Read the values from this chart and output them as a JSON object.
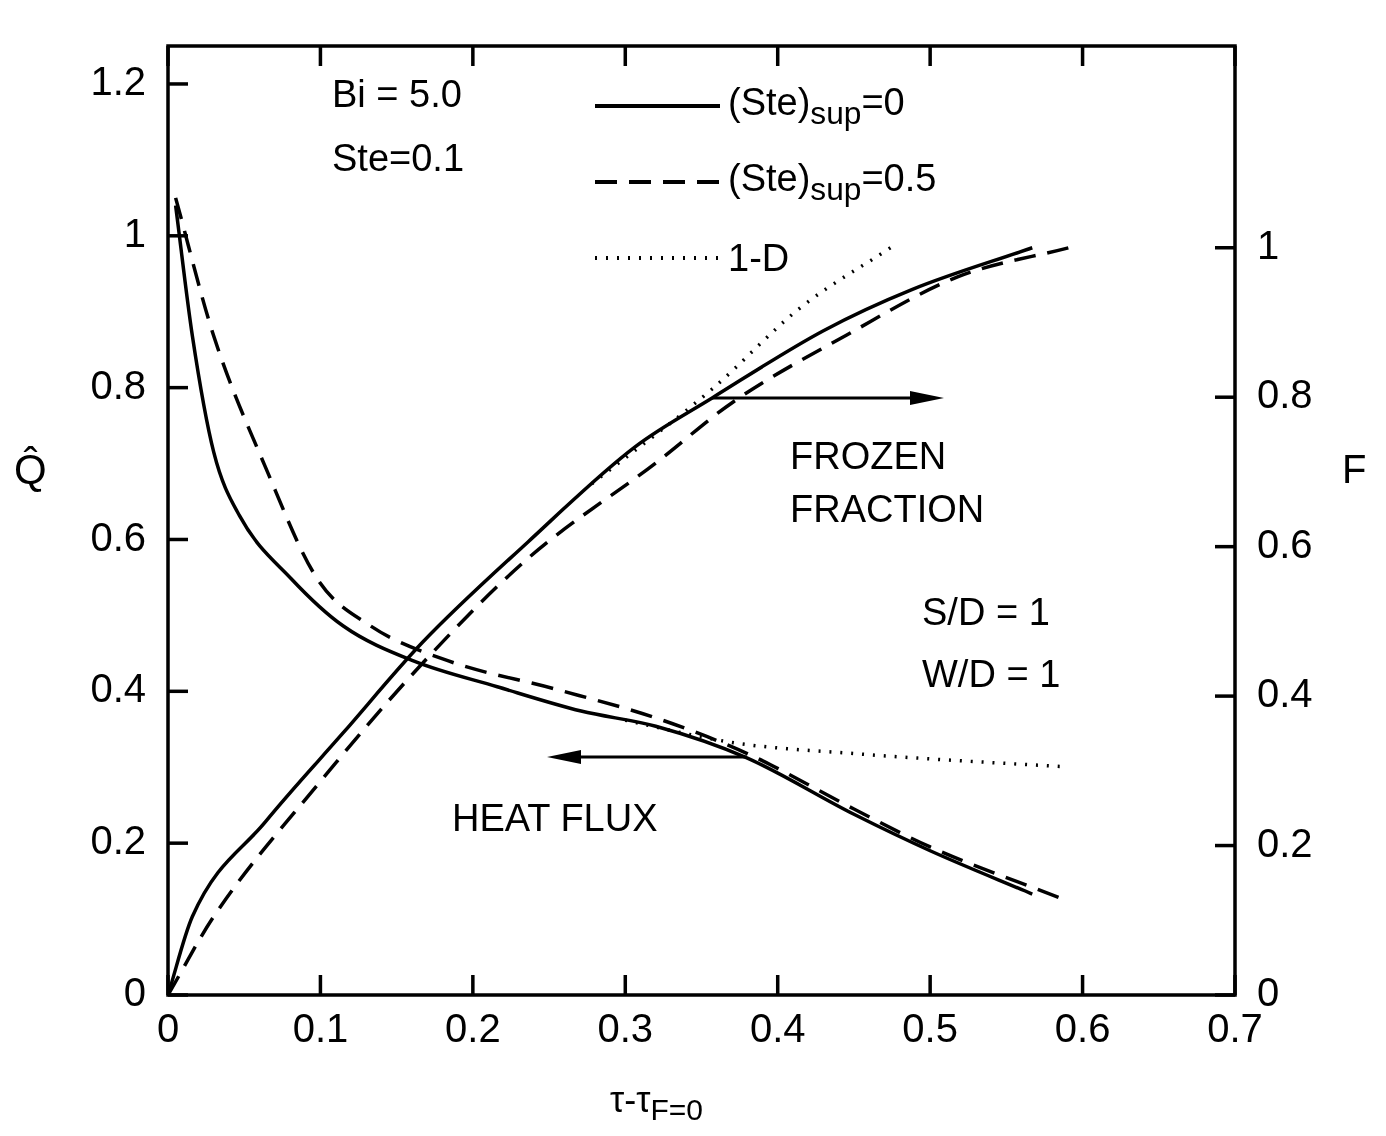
{
  "chart_data": {
    "type": "line",
    "xlabel": "τ-τ$_{F=0}$",
    "ylabel": "Q̂",
    "y2label": "F",
    "xlim": [
      0,
      0.7
    ],
    "xticks": [
      0,
      0.1,
      0.2,
      0.3,
      0.4,
      0.5,
      0.6,
      0.7
    ],
    "ylim": [
      0,
      1.25
    ],
    "yticks": [
      0,
      0.2,
      0.4,
      0.6,
      0.8,
      1.0,
      1.2
    ],
    "y2lim": [
      0,
      1.27
    ],
    "y2ticks": [
      0,
      0.2,
      0.4,
      0.6,
      0.8,
      1.0
    ],
    "grid": false,
    "legend": "top",
    "marker": "none",
    "annotations": [
      "Bi = 5.0",
      "Ste=0.1",
      {
        "text": "FROZEN FRACTION",
        "x": 0.357,
        "y": 0.787
      },
      {
        "text": "HEAT FLUX",
        "x": 0.38,
        "y": 0.313
      },
      "S/D = 1",
      "W/D = 1"
    ],
    "series": [
      {
        "name": "(Ste)$_{sup}$=0",
        "color": "#000000",
        "line_style": "solid",
        "axis": "y",
        "x": [
          0.005,
          0.016,
          0.03,
          0.047,
          0.081,
          0.115,
          0.161,
          0.216,
          0.271,
          0.32,
          0.379,
          0.45,
          0.5,
          0.567
        ],
        "values": [
          1.04,
          0.868,
          0.715,
          0.631,
          0.548,
          0.486,
          0.44,
          0.406,
          0.374,
          0.354,
          0.313,
          0.238,
          0.19,
          0.133
        ]
      },
      {
        "name": "(Ste)$_{sup}$=0.5",
        "color": "#000000",
        "line_style": "dashed",
        "axis": "y",
        "x": [
          0.005,
          0.03,
          0.064,
          0.098,
          0.133,
          0.184,
          0.254,
          0.32,
          0.38,
          0.45,
          0.5,
          0.585
        ],
        "values": [
          1.05,
          0.868,
          0.695,
          0.548,
          0.486,
          0.44,
          0.403,
          0.365,
          0.318,
          0.245,
          0.195,
          0.128
        ]
      },
      {
        "name": "1-D",
        "color": "#000000",
        "line_style": "dotted",
        "axis": "y",
        "x": [
          0.3,
          0.35,
          0.379,
          0.45,
          0.5,
          0.585
        ],
        "values": [
          0.362,
          0.34,
          0.33,
          0.318,
          0.311,
          0.301
        ]
      },
      {
        "color": "#000000",
        "line_style": "solid",
        "axis": "y2",
        "x": [
          0,
          0.016,
          0.064,
          0.115,
          0.167,
          0.236,
          0.306,
          0.357,
          0.43,
          0.488,
          0.567
        ],
        "values": [
          0,
          0.105,
          0.232,
          0.351,
          0.472,
          0.606,
          0.733,
          0.799,
          0.889,
          0.944,
          1.0
        ]
      },
      {
        "color": "#000000",
        "line_style": "dashed",
        "axis": "y2",
        "x": [
          0,
          0.03,
          0.098,
          0.167,
          0.236,
          0.32,
          0.371,
          0.445,
          0.518,
          0.591
        ],
        "values": [
          0,
          0.105,
          0.281,
          0.444,
          0.584,
          0.712,
          0.794,
          0.883,
          0.961,
          1.0
        ]
      },
      {
        "color": "#000000",
        "line_style": "dotted",
        "axis": "y2",
        "x": [
          0.278,
          0.357,
          0.415,
          0.474
        ],
        "values": [
          0.684,
          0.811,
          0.92,
          1.0
        ]
      }
    ]
  }
}
